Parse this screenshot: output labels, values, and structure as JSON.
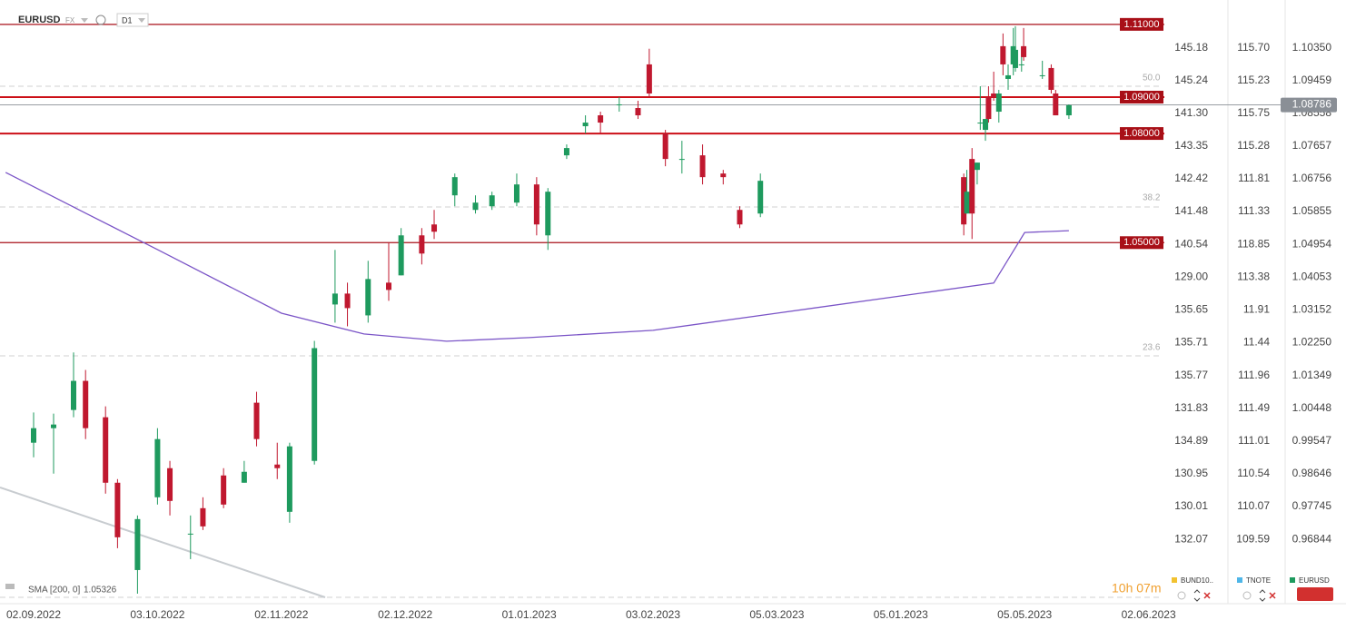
{
  "header": {
    "symbol": "EURUSD",
    "market": "FX",
    "timeframe": "D1"
  },
  "chart_data": {
    "type": "candlestick",
    "up_color": "#1e9a5e",
    "down_color": "#c0182f",
    "x": [
      "02.09.2022",
      "07.09.2022",
      "12.09.2022",
      "15.09.2022",
      "20.09.2022",
      "23.09.2022",
      "28.09.2022",
      "03.10.2022",
      "06.10.2022",
      "11.10.2022",
      "14.10.2022",
      "19.10.2022",
      "24.10.2022",
      "27.10.2022",
      "01.11.2022",
      "04.11.2022",
      "10.11.2022",
      "15.11.2022",
      "18.11.2022",
      "23.11.2022",
      "28.11.2022",
      "01.12.2022",
      "06.12.2022",
      "09.12.2022",
      "14.12.2022",
      "19.12.2022",
      "23.12.2022",
      "29.12.2022",
      "03.01.2023",
      "06.01.2023",
      "11.01.2023",
      "16.01.2023",
      "20.01.2023",
      "25.01.2023",
      "30.01.2023",
      "02.02.2023",
      "06.02.2023",
      "10.02.2023",
      "15.02.2023",
      "20.02.2023",
      "24.02.2023",
      "01.03.2023",
      "07.03.2023",
      "10.03.2023",
      "15.03.2023",
      "20.03.2023",
      "23.03.2023",
      "28.03.2023",
      "31.03.2023",
      "05.04.2023",
      "10.04.2023",
      "14.04.2023",
      "19.04.2023",
      "24.04.2023",
      "26.04.2023",
      "02.05.2023",
      "04.05.2023",
      "09.05.2023",
      "11.05.2023",
      "12.05.2023",
      "15.05.2023"
    ],
    "open": [
      0.995,
      0.999,
      1.004,
      1.012,
      1.002,
      0.984,
      0.96,
      0.98,
      0.988,
      0.97,
      0.977,
      0.986,
      0.984,
      1.006,
      0.989,
      0.976,
      0.99,
      1.033,
      1.036,
      1.03,
      1.039,
      1.041,
      1.052,
      1.055,
      1.063,
      1.059,
      1.06,
      1.061,
      1.066,
      1.052,
      1.074,
      1.082,
      1.085,
      1.088,
      1.087,
      1.099,
      1.08,
      1.073,
      1.074,
      1.069,
      1.059,
      1.058,
      1.068,
      1.058,
      1.073,
      1.07,
      1.083,
      1.081,
      1.09,
      1.091,
      1.086,
      1.104,
      1.095,
      1.099,
      1.098,
      1.099,
      1.104,
      1.096,
      1.098,
      1.091,
      1.085
    ],
    "high": [
      1.0033,
      1.003,
      1.0198,
      1.015,
      1.005,
      0.985,
      0.975,
      0.999,
      0.99,
      0.975,
      0.98,
      0.988,
      0.99,
      1.009,
      0.995,
      0.995,
      1.023,
      1.048,
      1.039,
      1.045,
      1.05,
      1.054,
      1.054,
      1.059,
      1.069,
      1.063,
      1.064,
      1.069,
      1.068,
      1.065,
      1.077,
      1.085,
      1.086,
      1.09,
      1.089,
      1.1033,
      1.081,
      1.078,
      1.077,
      1.07,
      1.06,
      1.069,
      1.069,
      1.07,
      1.076,
      1.072,
      1.093,
      1.084,
      1.093,
      1.097,
      1.092,
      1.1075,
      1.099,
      1.109,
      1.1095,
      1.103,
      1.109,
      1.1,
      1.099,
      1.092,
      1.088
    ],
    "low": [
      0.991,
      0.9865,
      1.002,
      0.996,
      0.981,
      0.966,
      0.9535,
      0.978,
      0.975,
      0.963,
      0.971,
      0.977,
      0.984,
      0.994,
      0.985,
      0.973,
      0.989,
      1.028,
      1.027,
      1.028,
      1.034,
      1.041,
      1.044,
      1.051,
      1.06,
      1.058,
      1.059,
      1.06,
      1.052,
      1.048,
      1.073,
      1.08,
      1.08,
      1.086,
      1.084,
      1.09,
      1.071,
      1.069,
      1.066,
      1.066,
      1.054,
      1.057,
      1.052,
      1.058,
      1.051,
      1.066,
      1.081,
      1.078,
      1.083,
      1.089,
      1.083,
      1.096,
      1.092,
      1.096,
      1.097,
      1.097,
      1.1,
      1.095,
      1.091,
      1.085,
      1.084
    ],
    "close": [
      0.999,
      1.0,
      1.012,
      0.999,
      0.984,
      0.969,
      0.974,
      0.996,
      0.979,
      0.97,
      0.972,
      0.978,
      0.987,
      0.996,
      0.988,
      0.994,
      1.021,
      1.036,
      1.032,
      1.04,
      1.037,
      1.052,
      1.047,
      1.053,
      1.068,
      1.061,
      1.063,
      1.066,
      1.055,
      1.064,
      1.076,
      1.083,
      1.083,
      1.088,
      1.085,
      1.091,
      1.073,
      1.073,
      1.068,
      1.068,
      1.055,
      1.067,
      1.055,
      1.064,
      1.058,
      1.072,
      1.083,
      1.084,
      1.084,
      1.09,
      1.091,
      1.099,
      1.096,
      1.104,
      1.103,
      1.099,
      1.101,
      1.096,
      1.092,
      1.085,
      1.0878
    ],
    "sma": {
      "name": "SMA [200, 0]",
      "last": 1.05326,
      "color": "#7b55c7",
      "x": [
        "26.08.2022",
        "15.09.2022",
        "03.10.2022",
        "02.11.2022",
        "22.11.2022",
        "12.12.2022",
        "01.01.2023",
        "03.02.2023",
        "05.03.2023",
        "05.04.2023",
        "05.05.2023",
        "15.05.2023"
      ],
      "values": [
        1.0693,
        1.0581,
        1.0481,
        1.0306,
        1.0249,
        1.0229,
        1.0239,
        1.0259,
        1.0306,
        1.0389,
        1.0528,
        1.0533
      ]
    },
    "levels": [
      {
        "value": 1.11,
        "label": "1.11000"
      },
      {
        "value": 1.09,
        "label": "1.09000"
      },
      {
        "value": 1.08,
        "label": "1.08000"
      },
      {
        "value": 1.05,
        "label": "1.05000"
      }
    ],
    "current_price": 1.08786,
    "fib_levels": [
      "50.0",
      "38.2",
      "23.6"
    ],
    "ylim": [
      0.952,
      1.1167
    ],
    "yticks": [
      {
        "value": 1.1035,
        "label": "1.10350"
      },
      1.09459,
      {
        "value": 1.0856,
        "label": "1.08558"
      },
      1.07657,
      1.06756,
      1.05855,
      1.04954,
      1.04053,
      1.03152,
      {
        "value": 1.0225,
        "label": "1.02250"
      },
      1.01349,
      1.00448,
      0.99547,
      0.98646,
      0.97745,
      0.96844
    ],
    "other_axes": [
      [
        "145.18",
        "145.24",
        "141.30",
        "143.35",
        "142.42",
        "141.48",
        "140.54",
        "129.00",
        "135.65",
        "135.71",
        "135.77",
        "131.83",
        "134.89",
        "130.95",
        "130.01",
        "132.07"
      ],
      [
        "115.70",
        "115.23",
        "115.75",
        "115.28",
        "111.81",
        "111.33",
        "118.85",
        "113.38",
        "11.91",
        "11.44",
        "111.96",
        "111.49",
        "111.01",
        "110.54",
        "110.07",
        "109.59"
      ]
    ],
    "xticks": [
      "02.09.2022",
      "03.10.2022",
      "02.11.2022",
      "02.12.2022",
      "01.01.2023",
      "03.02.2023",
      "05.03.2023",
      "05.01.2023",
      "05.05.2023",
      "02.06.2023"
    ],
    "grid": false
  },
  "footer": {
    "timer": "10h 07m",
    "legend": [
      {
        "name": "BUND10..",
        "color": "#f2c230"
      },
      {
        "name": "TNOTE",
        "color": "#4fb6e8"
      },
      {
        "name": "EURUSD",
        "color": "#1e9a5e"
      }
    ]
  }
}
